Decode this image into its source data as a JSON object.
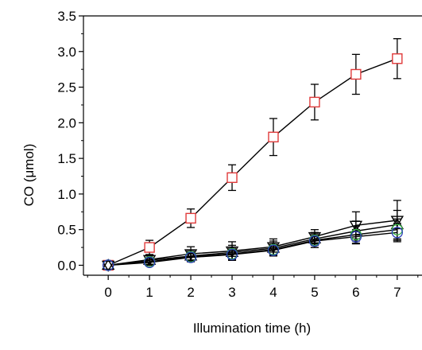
{
  "chart_data": {
    "type": "line",
    "xlabel": "Illumination time (h)",
    "ylabel": "CO (μmol)",
    "xlim": [
      -0.6,
      7.6
    ],
    "ylim": [
      -0.14,
      3.5
    ],
    "x_ticks": [
      0,
      1,
      2,
      3,
      4,
      5,
      6,
      7
    ],
    "x_tick_labels": [
      "0",
      "1",
      "2",
      "3",
      "4",
      "5",
      "6",
      "7"
    ],
    "y_ticks": [
      0.0,
      0.5,
      1.0,
      1.5,
      2.0,
      2.5,
      3.0,
      3.5
    ],
    "y_tick_labels": [
      "0.0",
      "0.5",
      "1.0",
      "1.5",
      "2.0",
      "2.5",
      "3.0",
      "3.5"
    ],
    "grid": false,
    "legend": "none",
    "series": [
      {
        "marker": "square",
        "color": "#e03a3a",
        "x": [
          0,
          1,
          2,
          3,
          4,
          5,
          6,
          7
        ],
        "y": [
          0.0,
          0.25,
          0.66,
          1.23,
          1.8,
          2.29,
          2.68,
          2.9
        ],
        "err": [
          0.02,
          0.1,
          0.13,
          0.18,
          0.26,
          0.25,
          0.28,
          0.28
        ]
      },
      {
        "marker": "triangle-down",
        "color": "#000000",
        "x": [
          0,
          1,
          2,
          3,
          4,
          5,
          6,
          7
        ],
        "y": [
          0.0,
          0.08,
          0.16,
          0.2,
          0.26,
          0.4,
          0.56,
          0.63
        ],
        "err": [
          0.02,
          0.07,
          0.1,
          0.13,
          0.11,
          0.1,
          0.19,
          0.28
        ]
      },
      {
        "marker": "triangle-up",
        "color": "#000000",
        "x": [
          0,
          1,
          2,
          3,
          4,
          5,
          6,
          7
        ],
        "y": [
          0.0,
          0.07,
          0.13,
          0.18,
          0.24,
          0.37,
          0.48,
          0.57
        ],
        "err": [
          0.02,
          0.06,
          0.08,
          0.1,
          0.1,
          0.09,
          0.14,
          0.2
        ]
      },
      {
        "marker": "circle",
        "color": "#3ab54a",
        "x": [
          0,
          1,
          2,
          3,
          4,
          5,
          6,
          7
        ],
        "y": [
          0.0,
          0.05,
          0.12,
          0.16,
          0.22,
          0.35,
          0.43,
          0.5
        ],
        "err": [
          0.02,
          0.05,
          0.07,
          0.09,
          0.09,
          0.1,
          0.12,
          0.15
        ]
      },
      {
        "marker": "circle",
        "color": "#2a3eb8",
        "x": [
          0,
          1,
          2,
          3,
          4,
          5,
          6,
          7
        ],
        "y": [
          0.0,
          0.04,
          0.11,
          0.15,
          0.21,
          0.34,
          0.4,
          0.46
        ],
        "err": [
          0.02,
          0.04,
          0.06,
          0.08,
          0.08,
          0.09,
          0.1,
          0.13
        ]
      }
    ]
  }
}
